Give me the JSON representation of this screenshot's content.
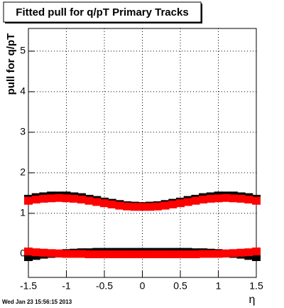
{
  "chart_data": {
    "type": "scatter",
    "title": "Fitted pull for q/pT  Primary Tracks",
    "y_label": "pull for q/pT",
    "x_label": "η",
    "timestamp": "Wed Jan 23 15:56:15 2013",
    "x": [
      -1.5,
      -1.4,
      -1.3,
      -1.2,
      -1.1,
      -1.0,
      -0.9,
      -0.8,
      -0.7,
      -0.6,
      -0.5,
      -0.4,
      -0.3,
      -0.2,
      -0.1,
      0,
      0.1,
      0.2,
      0.3,
      0.4,
      0.5,
      0.6,
      0.7,
      0.8,
      0.9,
      1.0,
      1.1,
      1.2,
      1.3,
      1.4,
      1.5
    ],
    "series": [
      {
        "color": "#000000",
        "values": [
          1.36,
          1.4,
          1.42,
          1.44,
          1.44,
          1.44,
          1.42,
          1.4,
          1.36,
          1.33,
          1.29,
          1.26,
          1.23,
          1.2,
          1.19,
          1.18,
          1.19,
          1.2,
          1.23,
          1.26,
          1.29,
          1.33,
          1.36,
          1.4,
          1.42,
          1.44,
          1.44,
          1.44,
          1.42,
          1.4,
          1.36
        ]
      },
      {
        "color": "#000000",
        "values": [
          -0.08,
          -0.05,
          -0.02,
          0.0,
          0.01,
          0.02,
          0.03,
          0.04,
          0.04,
          0.05,
          0.05,
          0.05,
          0.05,
          0.05,
          0.05,
          0.05,
          0.05,
          0.05,
          0.05,
          0.05,
          0.05,
          0.05,
          0.04,
          0.04,
          0.03,
          0.02,
          0.01,
          0.0,
          -0.02,
          -0.05,
          -0.08
        ]
      },
      {
        "color": "#ff0000",
        "values": [
          1.31,
          1.34,
          1.36,
          1.37,
          1.38,
          1.37,
          1.36,
          1.34,
          1.31,
          1.28,
          1.25,
          1.22,
          1.19,
          1.17,
          1.16,
          1.16,
          1.16,
          1.17,
          1.19,
          1.22,
          1.25,
          1.28,
          1.31,
          1.34,
          1.36,
          1.37,
          1.38,
          1.37,
          1.36,
          1.34,
          1.31
        ]
      },
      {
        "color": "#ff0000",
        "values": [
          0.06,
          0.04,
          0.03,
          0.02,
          0.01,
          0.0,
          0.0,
          0.0,
          -0.01,
          -0.01,
          -0.01,
          -0.01,
          -0.01,
          -0.01,
          -0.01,
          -0.01,
          -0.01,
          -0.01,
          -0.01,
          -0.01,
          -0.01,
          -0.01,
          -0.01,
          0.0,
          0.0,
          0.0,
          0.01,
          0.02,
          0.03,
          0.04,
          0.06
        ]
      }
    ],
    "xlim": [
      -1.5,
      1.5
    ],
    "xticks": [
      -1.5,
      -1,
      -0.5,
      0,
      0.5,
      1,
      1.5
    ],
    "ylim": [
      -0.58,
      5.56
    ],
    "yticks": [
      0,
      1,
      2,
      3,
      4,
      5
    ],
    "grid": true
  }
}
